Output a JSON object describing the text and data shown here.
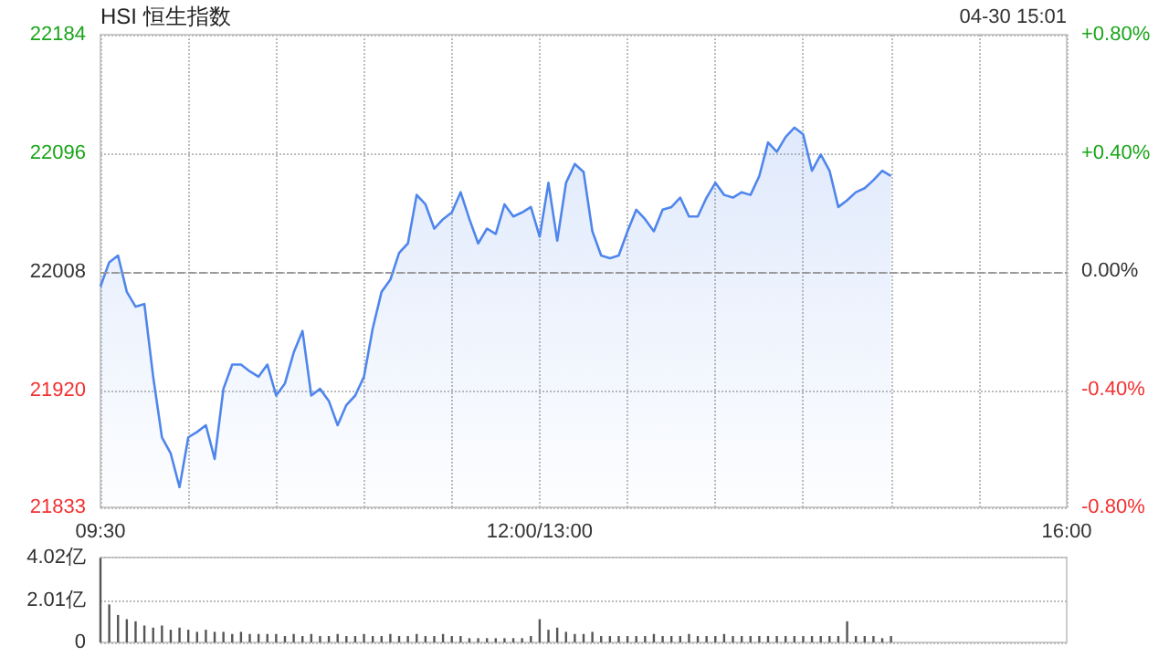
{
  "chart_data": [
    {
      "type": "area",
      "title": "HSI 恒生指数",
      "annotations": [
        "04-30 15:01"
      ],
      "categories": [
        "09:30",
        null,
        null,
        null,
        null,
        null,
        null,
        null,
        null,
        null,
        null,
        null,
        null,
        null,
        null,
        null,
        null,
        null,
        null,
        null,
        null,
        null,
        null,
        null,
        null,
        null,
        null,
        null,
        null,
        null,
        null,
        null,
        null,
        null,
        null,
        null,
        null,
        null,
        null,
        null,
        null,
        null,
        null,
        null,
        null,
        null,
        null,
        null,
        null,
        null,
        "12:00/13:00",
        null,
        null,
        null,
        null,
        null,
        null,
        null,
        null,
        null,
        null,
        null,
        null,
        null,
        null,
        null,
        null,
        null,
        null,
        null,
        null,
        null,
        null,
        null,
        null,
        null,
        null,
        null,
        null,
        null,
        null,
        null,
        null,
        null,
        null,
        null,
        null,
        null,
        null,
        null,
        null,
        null,
        null,
        null,
        null,
        null,
        null,
        null,
        null,
        null,
        null,
        null,
        null,
        null,
        null,
        null,
        null,
        null,
        null,
        null,
        "16:00"
      ],
      "series": [
        {
          "color": "#4f86ec",
          "values": [
            21997,
            22015,
            22020,
            21993,
            21982,
            21984,
            21930,
            21885,
            21873,
            21848,
            21885,
            21889,
            21894,
            21869,
            21921,
            21939,
            21939,
            21934,
            21930,
            21939,
            21916,
            21925,
            21948,
            21964,
            21916,
            21921,
            21912,
            21894,
            21909,
            21916,
            21930,
            21966,
            21993,
            22002,
            22022,
            22029,
            22065,
            22058,
            22040,
            22047,
            22052,
            22067,
            22047,
            22029,
            22040,
            22036,
            22058,
            22049,
            22052,
            22056,
            22034,
            22074,
            22031,
            22074,
            22088,
            22082,
            22038,
            22020,
            22018,
            22020,
            22038,
            22054,
            22047,
            22038,
            22054,
            22056,
            22063,
            22049,
            22049,
            22063,
            22074,
            22065,
            22063,
            22067,
            22065,
            22079,
            22104,
            22097,
            22108,
            22115,
            22110,
            22083,
            22095,
            22083,
            22056,
            22061,
            22067,
            22070,
            22076,
            22083,
            22079,
            null,
            null,
            null,
            null,
            null,
            null,
            null,
            null,
            null,
            null,
            null,
            null,
            null,
            null,
            null,
            null,
            null,
            null,
            null,
            null
          ]
        }
      ],
      "ylim": [
        21833,
        22184
      ],
      "yticks": [
        21833,
        21920,
        22008,
        22096,
        22184
      ],
      "y2lim": [
        -0.8,
        0.8
      ],
      "y2ticks": [
        {
          "value": -0.8,
          "label": "-0.80%"
        },
        {
          "value": -0.4,
          "label": "-0.40%"
        },
        {
          "value": 0,
          "label": "0.00%"
        },
        {
          "value": 0.4,
          "label": "+0.40%"
        },
        {
          "value": 0.8,
          "label": "+0.80%"
        }
      ],
      "ref_lines": [
        {
          "axis": "y",
          "value": 22008,
          "color": "#999999",
          "line_style": "dashed"
        }
      ],
      "grid": true,
      "marker": "none"
    },
    {
      "type": "bar",
      "categories": [
        null,
        null,
        null,
        null,
        null,
        null,
        null,
        null,
        null,
        null,
        null,
        null,
        null,
        null,
        null,
        null,
        null,
        null,
        null,
        null,
        null,
        null,
        null,
        null,
        null,
        null,
        null,
        null,
        null,
        null,
        null,
        null,
        null,
        null,
        null,
        null,
        null,
        null,
        null,
        null,
        null,
        null,
        null,
        null,
        null,
        null,
        null,
        null,
        null,
        null,
        null,
        null,
        null,
        null,
        null,
        null,
        null,
        null,
        null,
        null,
        null,
        null,
        null,
        null,
        null,
        null,
        null,
        null,
        null,
        null,
        null,
        null,
        null,
        null,
        null,
        null,
        null,
        null,
        null,
        null,
        null,
        null,
        null,
        null,
        null,
        null,
        null,
        null,
        null,
        null,
        null,
        null,
        null,
        null,
        null,
        null,
        null,
        null,
        null,
        null,
        null,
        null,
        null,
        null,
        null,
        null,
        null,
        null,
        null,
        null,
        null
      ],
      "series": [
        {
          "color": "#555555",
          "values": [
            4.0,
            1.8,
            1.3,
            1.1,
            1.0,
            0.8,
            0.7,
            0.8,
            0.6,
            0.7,
            0.6,
            0.5,
            0.6,
            0.5,
            0.5,
            0.4,
            0.5,
            0.4,
            0.4,
            0.4,
            0.4,
            0.3,
            0.4,
            0.3,
            0.4,
            0.3,
            0.3,
            0.4,
            0.3,
            0.3,
            0.4,
            0.3,
            0.3,
            0.4,
            0.3,
            0.3,
            0.4,
            0.3,
            0.3,
            0.4,
            0.3,
            0.3,
            0.2,
            0.2,
            0.2,
            0.2,
            0.2,
            0.2,
            0.2,
            0.3,
            1.1,
            0.6,
            0.7,
            0.5,
            0.4,
            0.4,
            0.5,
            0.3,
            0.3,
            0.3,
            0.3,
            0.3,
            0.3,
            0.4,
            0.3,
            0.3,
            0.3,
            0.4,
            0.3,
            0.3,
            0.3,
            0.4,
            0.3,
            0.3,
            0.3,
            0.3,
            0.3,
            0.3,
            0.3,
            0.3,
            0.3,
            0.3,
            0.3,
            0.3,
            0.3,
            1.0,
            0.3,
            0.3,
            0.3,
            0.2,
            0.3,
            null,
            null,
            null,
            null,
            null,
            null,
            null,
            null,
            null,
            null,
            null,
            null,
            null,
            null,
            null,
            null,
            null,
            null,
            null,
            null
          ]
        }
      ],
      "ylim": [
        0,
        4.02
      ],
      "yticks": [
        0,
        {
          "value": 2.01,
          "label": "2.01亿"
        },
        {
          "value": 4.02,
          "label": "4.02亿"
        }
      ],
      "grid": "y",
      "tick_labels": "y"
    }
  ]
}
